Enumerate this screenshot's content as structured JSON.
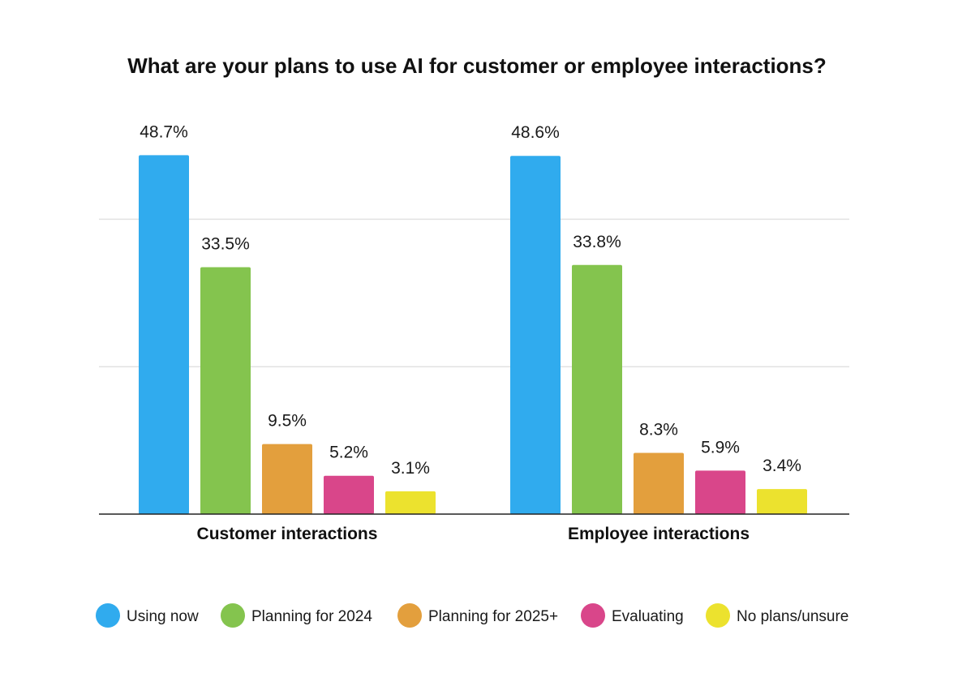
{
  "chart_data": {
    "type": "bar",
    "title": "What are your plans to use AI for customer or employee interactions?",
    "categories": [
      "Customer interactions",
      "Employee interactions"
    ],
    "series": [
      {
        "name": "Using now",
        "color": "#30abee",
        "values": [
          48.7,
          48.6
        ],
        "labels": [
          "48.7%",
          "48.6%"
        ]
      },
      {
        "name": "Planning for 2024",
        "color": "#84c44e",
        "values": [
          33.5,
          33.8
        ],
        "labels": [
          "33.5%",
          "33.8%"
        ]
      },
      {
        "name": "Planning for 2025+",
        "color": "#e39f3d",
        "values": [
          9.5,
          8.3
        ],
        "labels": [
          "9.5%",
          "8.3%"
        ]
      },
      {
        "name": "Evaluating",
        "color": "#d9468a",
        "values": [
          5.2,
          5.9
        ],
        "labels": [
          "5.2%",
          "5.9%"
        ]
      },
      {
        "name": "No plans/unsure",
        "color": "#ece22e",
        "values": [
          3.1,
          3.4
        ],
        "labels": [
          "3.1%",
          "3.4%"
        ]
      }
    ],
    "ylim": [
      0,
      50
    ],
    "grid": true,
    "legend_position": "bottom"
  }
}
